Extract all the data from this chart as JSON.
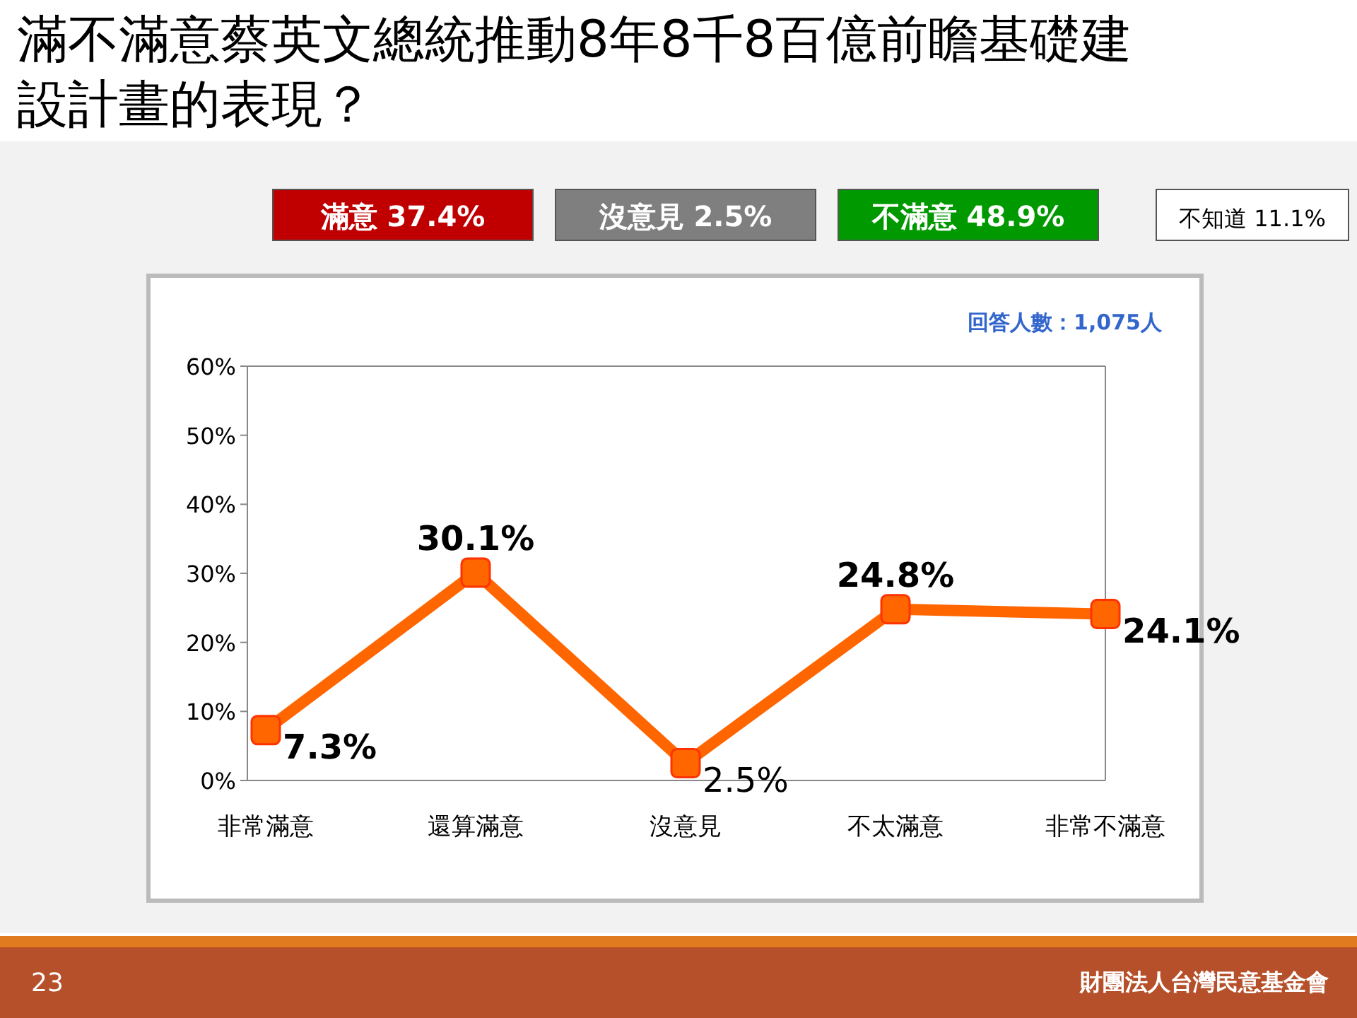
{
  "chart_data": {
    "type": "line",
    "title": "滿不滿意蔡英文總統推動8年8千8百億前瞻基礎建設計畫的表現？",
    "categories": [
      "非常滿意",
      "還算滿意",
      "沒意見",
      "不太滿意",
      "非常不滿意"
    ],
    "values": [
      7.3,
      30.1,
      2.5,
      24.8,
      24.1
    ],
    "color": "#ff6600",
    "marker": "square",
    "line_style": "solid",
    "data_labels": true,
    "value_labels": [
      "7.3%",
      "30.1%",
      "2.5%",
      "24.8%",
      "24.1%"
    ],
    "ylim": [
      0,
      60
    ],
    "yticks": [
      {
        "value": 0,
        "label": "0%"
      },
      {
        "value": 10,
        "label": "10%"
      },
      {
        "value": 20,
        "label": "20%"
      },
      {
        "value": 30,
        "label": "30%"
      },
      {
        "value": 40,
        "label": "40%"
      },
      {
        "value": 50,
        "label": "50%"
      },
      {
        "value": 60,
        "label": "60%"
      }
    ],
    "grid": false,
    "annotations": [
      "滿意 37.4%",
      "沒意見 2.5%",
      "不滿意 48.9%",
      "不知道 11.1%",
      "回答人數：1,075人",
      "23",
      "財團法人台灣民意基金會"
    ]
  }
}
